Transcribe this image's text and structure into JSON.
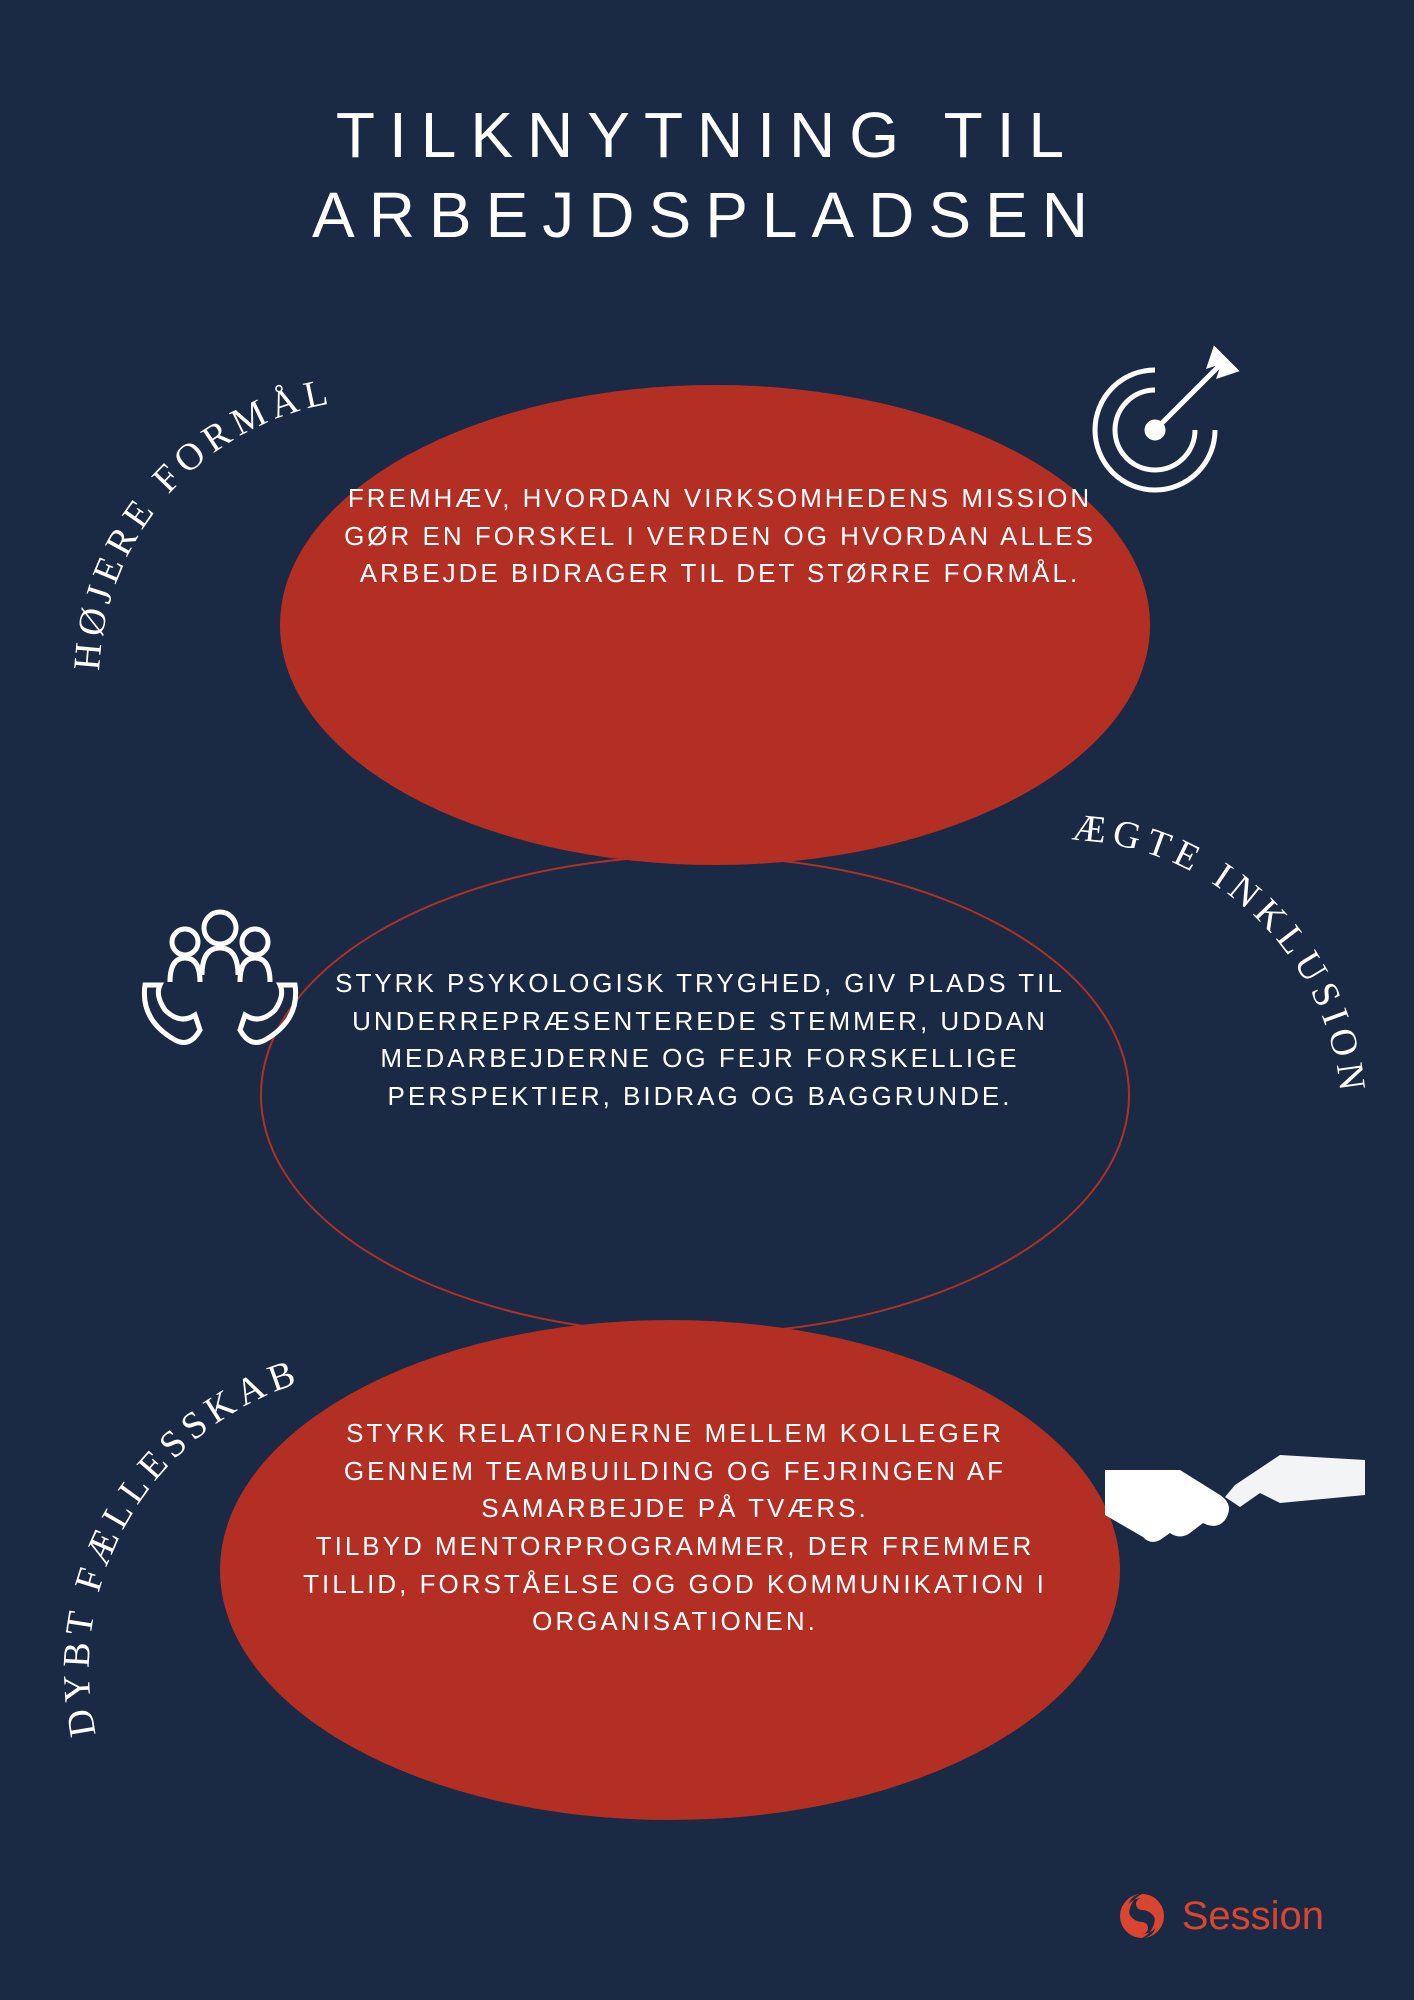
{
  "title": "TILKNYTNING TIL ARBEJDSPLADSEN",
  "colors": {
    "background": "#1a2a45",
    "accent": "#b32f24",
    "text": "#ffffff",
    "logo": "#d9452f"
  },
  "typography": {
    "title_fontsize": 64,
    "title_letter_spacing": 14,
    "label_fontsize": 38,
    "label_letter_spacing": 6,
    "body_fontsize": 26,
    "body_letter_spacing": 3
  },
  "sections": [
    {
      "label": "HØJERE FORMÅL",
      "body": "FREMHÆV, HVORDAN VIRKSOMHEDENS MISSION GØR EN FORSKEL I VERDEN OG HVORDAN ALLES ARBEJDE BIDRAGER TIL DET STØRRE FORMÅL.",
      "ellipse_fill": "#b32f24",
      "icon": "target-icon"
    },
    {
      "label": "ÆGTE INKLUSION",
      "body": "STYRK PSYKOLOGISK TRYGHED, GIV PLADS TIL UNDERREPRÆSENTEREDE STEMMER, UDDAN MEDARBEJDERNE OG FEJR FORSKELLIGE PERSPEKTIER, BIDRAG OG BAGGRUNDE.",
      "ellipse_fill": "transparent",
      "ellipse_stroke": "#b32f24",
      "icon": "people-icon"
    },
    {
      "label": "DYBT FÆLLESSKAB",
      "body": "STYRK RELATIONERNE MELLEM KOLLEGER GENNEM TEAMBUILDING OG FEJRINGEN AF SAMARBEJDE PÅ TVÆRS.\nTILBYD MENTORPROGRAMMER, DER FREMMER TILLID, FORSTÅELSE OG GOD KOMMUNIKATION I ORGANISATIONEN.",
      "ellipse_fill": "#b32f24",
      "icon": "handshake-icon"
    }
  ],
  "footer": {
    "brand": "Session"
  }
}
